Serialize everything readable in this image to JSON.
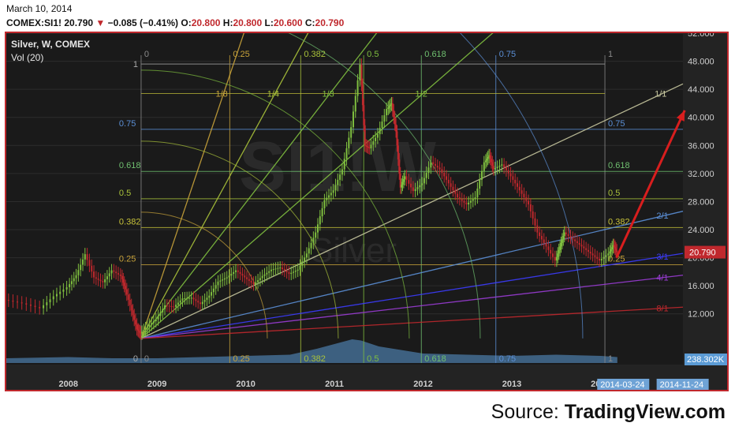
{
  "header": {
    "date": "March 10, 2014",
    "symbol": "COMEX:SI1!",
    "last": "20.790",
    "change": "−0.085 (−0.41%)",
    "o_label": "O:",
    "o_value": "20.800",
    "h_label": "H:",
    "h_value": "20.800",
    "l_label": "L:",
    "l_value": "20.600",
    "c_label": "C:",
    "c_value": "20.790"
  },
  "overlay": {
    "title": "Silver, W, COMEX",
    "volume": "Vol (20)",
    "watermark_symbol": "SI1!W",
    "watermark_name": "Silver"
  },
  "source": {
    "prefix": "Source: ",
    "name": "TradingView.com"
  },
  "colors": {
    "background": "#1a1a1a",
    "frame": "#c0282d",
    "up": "#7fbf3f",
    "down": "#c0282d",
    "trend_arrow": "#d81e1e",
    "price_badge": "#c0282d",
    "date_badge": "#6fa3d6",
    "volume": "#5b9bd5"
  },
  "chart_data": {
    "type": "candlestick",
    "interval": "weekly",
    "symbol": "COMEX:SI1!",
    "y_ticks": [
      "52.000",
      "48.000",
      "44.000",
      "40.000",
      "36.000",
      "32.000",
      "28.000",
      "24.000",
      "20.000",
      "16.000",
      "12.000"
    ],
    "y_tick_values": [
      52,
      48,
      44,
      40,
      36,
      32,
      28,
      24,
      20,
      16,
      12
    ],
    "ylim": [
      5,
      52
    ],
    "x_ticks": [
      "2008",
      "2009",
      "2010",
      "2011",
      "2012",
      "2013",
      "2014"
    ],
    "x_tick_values": [
      2008,
      2009,
      2010,
      2011,
      2012,
      2013,
      2014
    ],
    "xlim": [
      2007.3,
      2014.93
    ],
    "last_price_label": "20.790",
    "last_price": 20.79,
    "volume_label": "238.302K",
    "date_badges": [
      {
        "label": "2014-03-24",
        "x": 2014.23
      },
      {
        "label": "2014-11-24",
        "x": 2014.9
      }
    ],
    "price_path": [
      [
        2007.3,
        14
      ],
      [
        2007.5,
        13.5
      ],
      [
        2007.7,
        12.8
      ],
      [
        2007.85,
        14.5
      ],
      [
        2008.0,
        15.8
      ],
      [
        2008.1,
        17.5
      ],
      [
        2008.2,
        20.5
      ],
      [
        2008.3,
        17.2
      ],
      [
        2008.4,
        16.5
      ],
      [
        2008.5,
        18.2
      ],
      [
        2008.6,
        17.4
      ],
      [
        2008.65,
        15.5
      ],
      [
        2008.72,
        12.5
      ],
      [
        2008.78,
        9.8
      ],
      [
        2008.82,
        9.2
      ],
      [
        2008.9,
        10.2
      ],
      [
        2009.0,
        11.2
      ],
      [
        2009.1,
        13.2
      ],
      [
        2009.2,
        13.0
      ],
      [
        2009.3,
        14.2
      ],
      [
        2009.4,
        14.3
      ],
      [
        2009.5,
        13.4
      ],
      [
        2009.6,
        14.6
      ],
      [
        2009.7,
        16.6
      ],
      [
        2009.8,
        17.2
      ],
      [
        2009.9,
        18.2
      ],
      [
        2010.0,
        17.2
      ],
      [
        2010.1,
        16.2
      ],
      [
        2010.2,
        17.4
      ],
      [
        2010.3,
        18.3
      ],
      [
        2010.4,
        18.6
      ],
      [
        2010.5,
        17.7
      ],
      [
        2010.6,
        18.3
      ],
      [
        2010.7,
        20.6
      ],
      [
        2010.8,
        23.6
      ],
      [
        2010.9,
        28.2
      ],
      [
        2011.0,
        29.6
      ],
      [
        2011.1,
        32.6
      ],
      [
        2011.2,
        38.6
      ],
      [
        2011.3,
        47.5
      ],
      [
        2011.35,
        36.0
      ],
      [
        2011.4,
        35.6
      ],
      [
        2011.5,
        37.6
      ],
      [
        2011.6,
        41.2
      ],
      [
        2011.65,
        42.0
      ],
      [
        2011.7,
        38.0
      ],
      [
        2011.75,
        30.0
      ],
      [
        2011.8,
        31.6
      ],
      [
        2011.9,
        29.5
      ],
      [
        2012.0,
        30.6
      ],
      [
        2012.1,
        33.6
      ],
      [
        2012.2,
        32.6
      ],
      [
        2012.3,
        30.6
      ],
      [
        2012.4,
        28.6
      ],
      [
        2012.5,
        27.6
      ],
      [
        2012.6,
        28.6
      ],
      [
        2012.7,
        33.6
      ],
      [
        2012.75,
        34.6
      ],
      [
        2012.8,
        32.6
      ],
      [
        2012.9,
        33.3
      ],
      [
        2013.0,
        31.6
      ],
      [
        2013.1,
        29.6
      ],
      [
        2013.2,
        27.6
      ],
      [
        2013.3,
        23.6
      ],
      [
        2013.4,
        21.6
      ],
      [
        2013.5,
        19.6
      ],
      [
        2013.55,
        21.6
      ],
      [
        2013.6,
        23.6
      ],
      [
        2013.7,
        22.6
      ],
      [
        2013.8,
        21.6
      ],
      [
        2013.9,
        20.6
      ],
      [
        2014.0,
        19.6
      ],
      [
        2014.1,
        20.6
      ],
      [
        2014.15,
        21.8
      ],
      [
        2014.19,
        20.79
      ]
    ],
    "volume_path": [
      [
        2007.3,
        0.2
      ],
      [
        2008.0,
        0.25
      ],
      [
        2008.5,
        0.2
      ],
      [
        2009.0,
        0.2
      ],
      [
        2009.5,
        0.25
      ],
      [
        2010.0,
        0.3
      ],
      [
        2010.5,
        0.35
      ],
      [
        2010.8,
        0.6
      ],
      [
        2011.0,
        0.8
      ],
      [
        2011.2,
        1.0
      ],
      [
        2011.3,
        0.95
      ],
      [
        2011.5,
        0.7
      ],
      [
        2011.75,
        0.55
      ],
      [
        2012.0,
        0.4
      ],
      [
        2012.5,
        0.35
      ],
      [
        2013.0,
        0.3
      ],
      [
        2013.5,
        0.35
      ],
      [
        2014.0,
        0.3
      ],
      [
        2014.19,
        0.25
      ]
    ],
    "volume_ylim": [
      0,
      1.2
    ],
    "fib_price_levels": [
      {
        "label": "0.75",
        "value": 38.3
      },
      {
        "label": "0.618",
        "value": 32.3
      },
      {
        "label": "0.5",
        "value": 28.4
      },
      {
        "label": "0.382",
        "value": 24.3
      },
      {
        "label": "0.25",
        "value": 19.0
      }
    ],
    "fib_time_levels": [
      {
        "label": "0",
        "x": 2008.82
      },
      {
        "label": "0.25",
        "x": 2009.82
      },
      {
        "label": "0.382",
        "x": 2010.62
      },
      {
        "label": "0.5",
        "x": 2011.33
      },
      {
        "label": "0.618",
        "x": 2011.98
      },
      {
        "label": "0.75",
        "x": 2012.82
      },
      {
        "label": "1",
        "x": 2014.05
      }
    ],
    "gann_fan_labels": [
      "1/8",
      "1/4",
      "1/3",
      "1/2",
      "1/1",
      "2/1",
      "3/1",
      "4/1",
      "8/1"
    ],
    "gann_box_labels": [
      "1",
      "0"
    ],
    "trend_arrow": {
      "from": [
        2014.18,
        20.0
      ],
      "to": [
        2014.95,
        41.0
      ]
    }
  }
}
